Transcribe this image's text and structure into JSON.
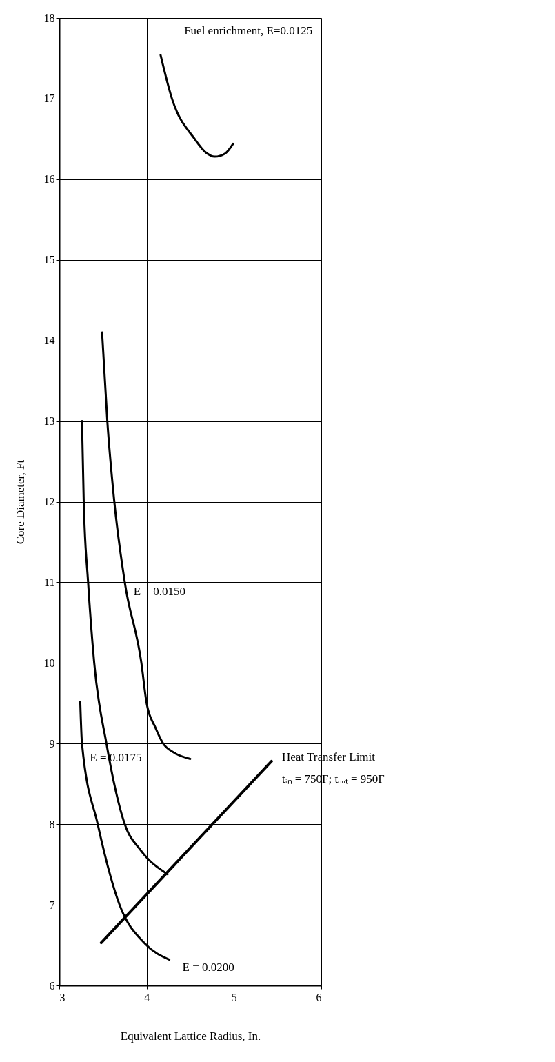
{
  "chart_data": {
    "type": "line",
    "xlabel": "Equivalent Lattice Radius, In.",
    "ylabel": "Core Diameter, Ft",
    "xlim": [
      3,
      6
    ],
    "xticks": [
      3,
      4,
      5,
      6
    ],
    "ylim": [
      6,
      18
    ],
    "yticks": [
      6,
      7,
      8,
      9,
      10,
      11,
      12,
      13,
      14,
      15,
      16,
      17,
      18
    ],
    "grid": true,
    "marker": "none",
    "line_style": "solid",
    "series": [
      {
        "name": "Fuel enrichment, E=0.0125",
        "color": "#000000",
        "x": [
          4.16,
          4.29,
          4.55,
          4.68,
          4.78,
          4.9,
          4.99
        ],
        "values": [
          17.54,
          17.0,
          16.5,
          16.33,
          16.28,
          16.32,
          16.44
        ]
      },
      {
        "name": "E = 0.0150",
        "color": "#000000",
        "x": [
          3.49,
          3.55,
          3.63,
          3.75,
          3.94,
          4.0,
          4.1,
          4.19,
          4.31,
          4.5
        ],
        "values": [
          14.1,
          13.0,
          12.0,
          11.0,
          10.0,
          9.5,
          9.2,
          9.0,
          8.89,
          8.81
        ]
      },
      {
        "name": "E = 0.0175",
        "color": "#000000",
        "x": [
          3.26,
          3.28,
          3.33,
          3.4,
          3.54,
          3.75,
          3.93,
          4.24
        ],
        "values": [
          13.0,
          12.0,
          11.0,
          10.0,
          9.0,
          8.0,
          7.68,
          7.38
        ]
      },
      {
        "name": "E = 0.0200",
        "color": "#000000",
        "x": [
          3.24,
          3.26,
          3.44,
          3.69,
          3.98,
          4.26
        ],
        "values": [
          9.52,
          9.0,
          8.0,
          7.0,
          6.52,
          6.32
        ]
      },
      {
        "name": "Heat Transfer Limit",
        "color": "#000000",
        "x": [
          3.48,
          5.43
        ],
        "values": [
          6.53,
          8.78
        ]
      }
    ],
    "annotations": [
      "tᵢₙ = 750F; tₒᵤₜ = 950F"
    ]
  }
}
